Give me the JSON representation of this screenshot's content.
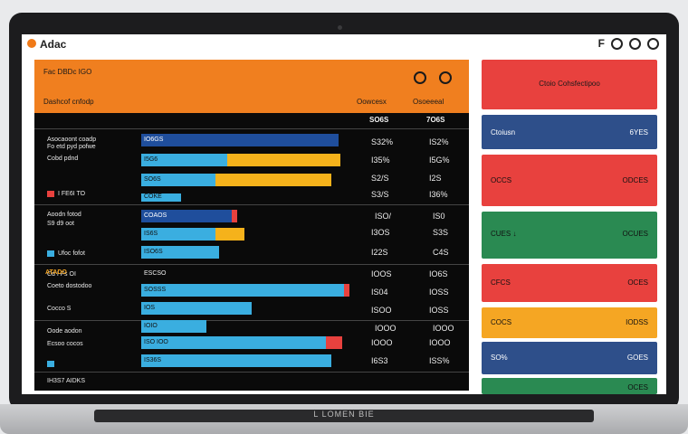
{
  "titlebar": {
    "app_title": "Adac",
    "control_text": "F"
  },
  "header": {
    "title": "Fac DBDc IGO",
    "subtitle": "Dashcof cnfodp",
    "col1": "Oowcesx",
    "col2": "Osoeeeal"
  },
  "columns": {
    "c1": "SO6S",
    "c2": "7O6S"
  },
  "rows": [
    {
      "label": "Asocaoont coadp",
      "bar_text": "IO6GS",
      "v1": "S32%",
      "v2": "IS2%"
    },
    {
      "label": "Fo etd pyd pofwe",
      "bar_text": "I5G6",
      "v1": "I35%",
      "v2": "I5G%"
    },
    {
      "label": "Cobd pdnd",
      "bar_text": "SO6S",
      "v1": "S2/S",
      "v2": "I2S"
    },
    {
      "label": "I FE6I TO",
      "bar_text": "COKE",
      "v1": "S3/S",
      "v2": "I36%"
    },
    {
      "label": "Aoodn fotod",
      "bar_text": "COAOS",
      "v1": "ISO/",
      "v2": "IS0"
    },
    {
      "label": "S9 d9 oot",
      "bar_text": "IS6S",
      "v1": "I3OS",
      "v2": "S3S"
    },
    {
      "label": "Ufoc fofot",
      "bar_text": "ISO6S",
      "v1": "I22S",
      "v2": "C4S"
    },
    {
      "label": "Cd I Fs OI",
      "bar_text": "IOSS",
      "v1": "I6S%",
      "v2": "I6%"
    },
    {
      "label": "ATADO",
      "bar_text": "ESCSO",
      "v1": "IOOS",
      "v2": "IO6S"
    },
    {
      "label": "Coeto dostodoo",
      "bar_text": "SOSSS",
      "v1": "IS04",
      "v2": "IOSS"
    },
    {
      "label": "Cocco S",
      "bar_text": "IOS",
      "v1": "ISOO",
      "v2": "IOSS"
    },
    {
      "label": "Ooocoo 9A",
      "bar_text": "IOIO",
      "v1": "IOOO",
      "v2": "IOOO"
    },
    {
      "label": "Oode aodon",
      "bar_text": "ISO IOO",
      "v1": "IOOO",
      "v2": "IOOO"
    },
    {
      "label": "Ecsoo cocos",
      "bar_text": "IS36S",
      "v1": "IOOS",
      "v2": "I0S0"
    },
    {
      "label": "I4O OIOO",
      "bar_text": "SO6S",
      "v1": "I6S3",
      "v2": "ISS%"
    }
  ],
  "footer": {
    "label": "IH3S7 AIDKS"
  },
  "side": [
    {
      "title": "Ctoio Cohsfectipoo",
      "left": "",
      "right": "",
      "color": "#e8413e"
    },
    {
      "title": "",
      "left": "Ctoiusn",
      "right": "6YES",
      "color": "#2e4f8a"
    },
    {
      "title": "",
      "left": "OCCS",
      "right": "ODCES",
      "color": "#e8413e"
    },
    {
      "title": "",
      "left": "CUES ↓",
      "right": "OCUES",
      "color": "#2a8a52"
    },
    {
      "title": "",
      "left": "CFCS",
      "right": "OCES",
      "color": "#e8413e"
    },
    {
      "title": "",
      "left": "COCS",
      "right": "IODSS",
      "color": "#f5a623"
    },
    {
      "title": "",
      "left": "SO%",
      "right": "GOES",
      "color": "#2e4f8a"
    },
    {
      "title": "",
      "left": "",
      "right": "OCES",
      "color": "#2a8a52"
    }
  ],
  "brand": "L LOMEN BIE",
  "colors": {
    "orange": "#f07f1f",
    "bar_blue": "#3aaee0",
    "bar_navy": "#1f4e9c",
    "bar_yellow": "#f5b21b",
    "bar_red": "#e8413e"
  }
}
